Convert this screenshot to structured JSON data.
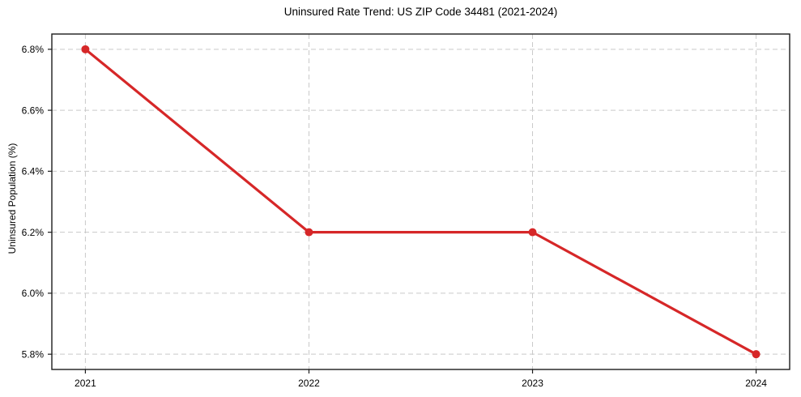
{
  "chart_data": {
    "type": "line",
    "title": "Uninsured Rate Trend: US ZIP Code 34481 (2021-2024)",
    "ylabel": "Uninsured Population (%)",
    "xlabel": "",
    "x": [
      2021,
      2022,
      2023,
      2024
    ],
    "x_tick_labels": [
      "2021",
      "2022",
      "2023",
      "2024"
    ],
    "values": [
      6.8,
      6.2,
      6.2,
      5.8
    ],
    "y_ticks": [
      5.8,
      6.0,
      6.2,
      6.4,
      6.6,
      6.8
    ],
    "y_tick_suffix": "%",
    "y_tick_decimals": 1,
    "ylim": [
      5.75,
      6.85
    ],
    "xlim": [
      2020.85,
      2024.15
    ],
    "grid": {
      "visible": true,
      "style": "dashed",
      "color": "#c9c9c9"
    },
    "legend_position": "none",
    "colors": {
      "line": "#d62728",
      "marker": "#d62728",
      "axis": "#1c1c1c",
      "text": "#000000",
      "background": "#ffffff"
    }
  }
}
